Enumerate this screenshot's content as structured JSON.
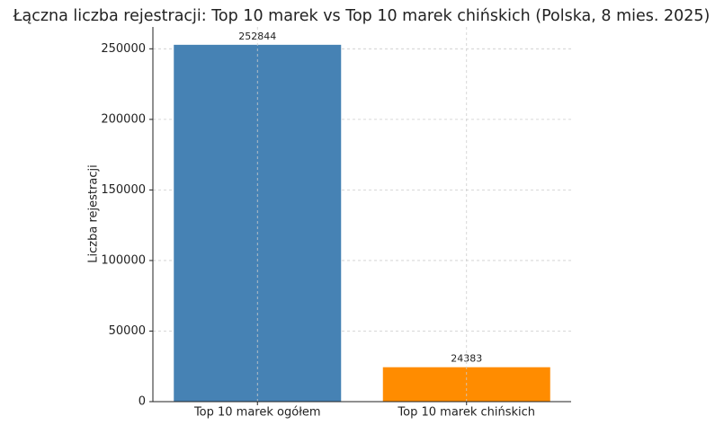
{
  "chart_data": {
    "type": "bar",
    "title": "Łączna liczba rejestracji: Top 10 marek vs Top 10 marek chińskich (Polska, 8 mies. 2025)",
    "ylabel": "Liczba rejestracji",
    "categories": [
      "Top 10 marek ogółem",
      "Top 10 marek chińskich"
    ],
    "values": [
      252844,
      24383
    ],
    "colors": [
      "#4682b4",
      "#ff8c00"
    ],
    "ylim": [
      0,
      265486
    ],
    "yticks": [
      0,
      50000,
      100000,
      150000,
      200000,
      250000
    ],
    "grid": true
  }
}
